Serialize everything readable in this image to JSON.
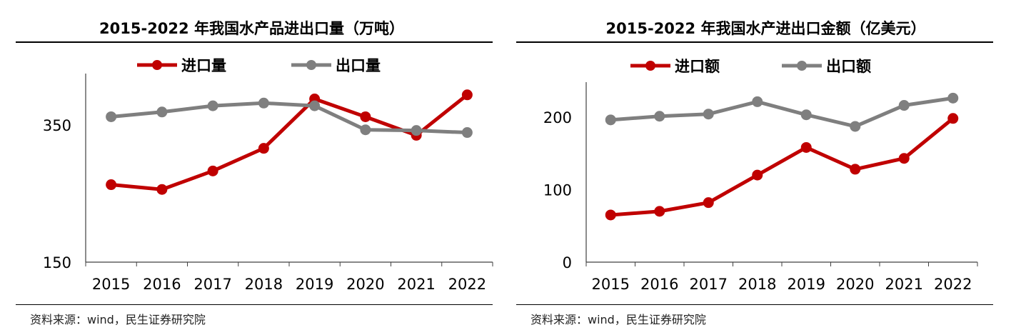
{
  "chart_data": [
    {
      "type": "line",
      "title": "2015-2022 年我国水产品进出口量（万吨）",
      "categories": [
        "2015",
        "2016",
        "2017",
        "2018",
        "2019",
        "2020",
        "2021",
        "2022"
      ],
      "series": [
        {
          "name": "进口量",
          "color": "#c00000",
          "values": [
            263,
            256,
            283,
            316,
            388,
            362,
            335,
            394
          ]
        },
        {
          "name": "出口量",
          "color": "#7f7f7f",
          "values": [
            362,
            369,
            378,
            382,
            378,
            343,
            342,
            339
          ]
        }
      ],
      "yticks": [
        "350",
        "150"
      ],
      "ylim": [
        150,
        425
      ],
      "legend_position": "top",
      "source": "资料来源：wind，民生证券研究院"
    },
    {
      "type": "line",
      "title": "2015-2022 年我国水产进出口金额（亿美元）",
      "categories": [
        "2015",
        "2016",
        "2017",
        "2018",
        "2019",
        "2020",
        "2021",
        "2022"
      ],
      "series": [
        {
          "name": "进口额",
          "color": "#c00000",
          "values": [
            65,
            70,
            82,
            120,
            158,
            128,
            143,
            198
          ]
        },
        {
          "name": "出口额",
          "color": "#7f7f7f",
          "values": [
            196,
            201,
            204,
            221,
            203,
            187,
            216,
            226
          ]
        }
      ],
      "yticks": [
        "200",
        "100",
        "0"
      ],
      "ylim": [
        0,
        248
      ],
      "legend_position": "top",
      "source": "资料来源：wind，民生证券研究院"
    }
  ]
}
